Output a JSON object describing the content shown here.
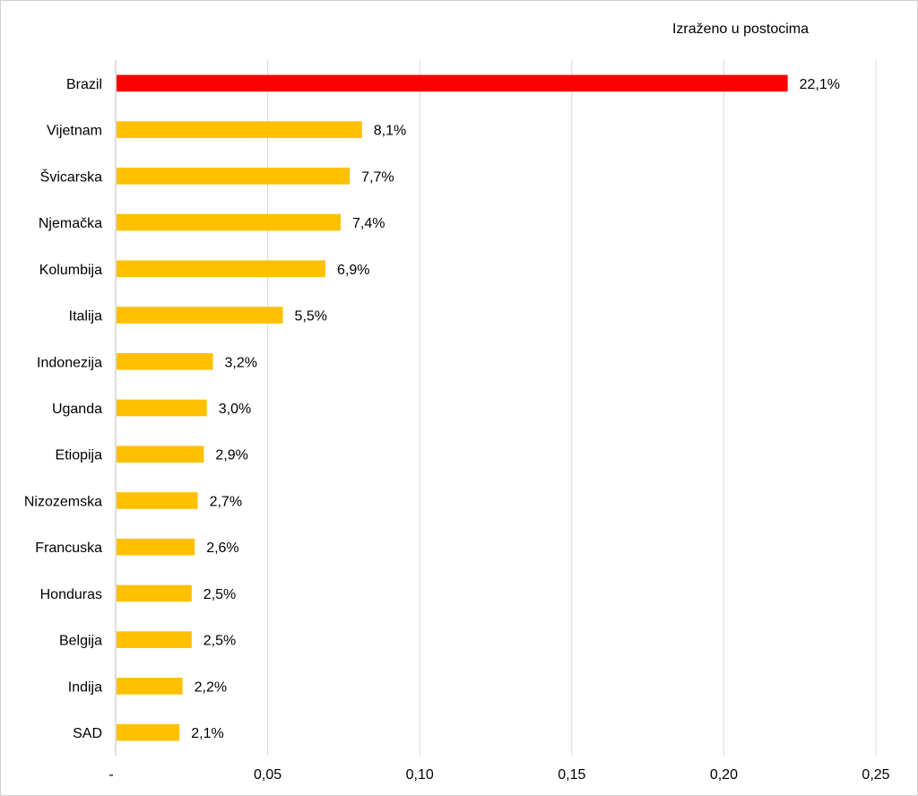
{
  "chart_data": {
    "type": "bar",
    "orientation": "horizontal",
    "title": "",
    "note": "Izraženo u postocima",
    "xlabel": "",
    "ylabel": "",
    "xlim": [
      0,
      0.25
    ],
    "xticks": [
      0,
      0.05,
      0.1,
      0.15,
      0.2,
      0.25
    ],
    "xtick_labels": [
      "-",
      "0,05",
      "0,10",
      "0,15",
      "0,20",
      "0,25"
    ],
    "grid": "vertical",
    "legend": "none",
    "categories": [
      "Brazil",
      "Vijetnam",
      "Švicarska",
      "Njemačka",
      "Kolumbija",
      "Italija",
      "Indonezija",
      "Uganda",
      "Etiopija",
      "Nizozemska",
      "Francuska",
      "Honduras",
      "Belgija",
      "Indija",
      "SAD"
    ],
    "values": [
      0.221,
      0.081,
      0.077,
      0.074,
      0.069,
      0.055,
      0.032,
      0.03,
      0.029,
      0.027,
      0.026,
      0.025,
      0.025,
      0.022,
      0.021
    ],
    "data_labels": [
      "22,1%",
      "8,1%",
      "7,7%",
      "7,4%",
      "6,9%",
      "5,5%",
      "3,2%",
      "3,0%",
      "2,9%",
      "2,7%",
      "2,6%",
      "2,5%",
      "2,5%",
      "2,2%",
      "2,1%"
    ],
    "colors": {
      "highlight": "#ff0000",
      "default": "#ffc000",
      "grid": "#d9d9d9",
      "axis": "#bfbfbf"
    },
    "highlight_index": 0
  }
}
